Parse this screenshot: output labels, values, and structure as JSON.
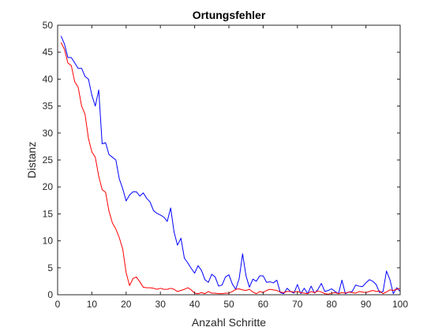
{
  "chart_data": {
    "type": "line",
    "title": "Ortungsfehler",
    "xlabel": "Anzahl Schritte",
    "ylabel": "Distanz",
    "xlim": [
      0,
      100
    ],
    "ylim": [
      0,
      50
    ],
    "xticks": [
      0,
      10,
      20,
      30,
      40,
      50,
      60,
      70,
      80,
      90,
      100
    ],
    "yticks": [
      0,
      5,
      10,
      15,
      20,
      25,
      30,
      35,
      40,
      45,
      50
    ],
    "grid": false,
    "series": [
      {
        "color": "#0000ff",
        "x": [
          1,
          2,
          3,
          4,
          5,
          6,
          7,
          8,
          9,
          10,
          11,
          12,
          13,
          14,
          15,
          16,
          17,
          18,
          19,
          20,
          21,
          22,
          23,
          24,
          25,
          26,
          27,
          28,
          29,
          30,
          31,
          32,
          33,
          34,
          35,
          36,
          37,
          38,
          39,
          40,
          41,
          42,
          43,
          44,
          45,
          46,
          47,
          48,
          49,
          50,
          51,
          52,
          53,
          54,
          55,
          56,
          57,
          58,
          59,
          60,
          61,
          62,
          63,
          64,
          65,
          66,
          67,
          68,
          69,
          70,
          71,
          72,
          73,
          74,
          75,
          76,
          77,
          78,
          79,
          80,
          81,
          82,
          83,
          84,
          85,
          86,
          87,
          88,
          89,
          90,
          91,
          92,
          93,
          94,
          95,
          96,
          97,
          98,
          99,
          100
        ],
        "y": [
          48,
          46.5,
          44,
          44,
          43,
          42,
          42,
          40.5,
          40,
          37,
          35,
          38,
          28,
          28.2,
          26,
          25.5,
          25,
          21.5,
          19.7,
          17.4,
          18.5,
          19.1,
          19.1,
          18.3,
          18.9,
          17.9,
          17.2,
          15.6,
          15.1,
          14.8,
          14.4,
          13.6,
          16.1,
          11.6,
          9.2,
          10.5,
          6.8,
          5.9,
          4.9,
          4.0,
          5.4,
          4.5,
          2.8,
          2.3,
          3.8,
          3.3,
          1.6,
          1.8,
          3.3,
          3.7,
          2.0,
          1.0,
          3.0,
          7.6,
          3.5,
          1.4,
          2.9,
          2.5,
          3.5,
          3.5,
          2.3,
          2.4,
          2.2,
          2.7,
          0.4,
          0.2,
          1.2,
          0.6,
          0.3,
          1.9,
          0.2,
          1.2,
          0.2,
          1.6,
          0.3,
          1.0,
          2.1,
          0.6,
          0.8,
          1.1,
          0.6,
          0.2,
          2.7,
          0.2,
          0.5,
          0.6,
          1.8,
          1.6,
          1.5,
          2.2,
          2.8,
          2.5,
          1.9,
          0.4,
          0.6,
          4.4,
          2.8,
          0.2,
          1.3,
          0.6
        ]
      },
      {
        "color": "#ff0000",
        "x": [
          1,
          2,
          3,
          4,
          5,
          6,
          7,
          8,
          9,
          10,
          11,
          12,
          13,
          14,
          15,
          16,
          17,
          18,
          19,
          20,
          21,
          22,
          23,
          24,
          25,
          26,
          27,
          28,
          29,
          30,
          31,
          32,
          33,
          34,
          35,
          36,
          37,
          38,
          39,
          40,
          41,
          42,
          43,
          44,
          45,
          46,
          47,
          48,
          49,
          50,
          51,
          52,
          53,
          54,
          55,
          56,
          57,
          58,
          59,
          60,
          61,
          62,
          63,
          64,
          65,
          66,
          67,
          68,
          69,
          70,
          71,
          72,
          73,
          74,
          75,
          76,
          77,
          78,
          79,
          80,
          81,
          82,
          83,
          84,
          85,
          86,
          87,
          88,
          89,
          90,
          91,
          92,
          93,
          94,
          95,
          96,
          97,
          98,
          99,
          100
        ],
        "y": [
          46.8,
          45.5,
          43,
          42.5,
          39.5,
          38.5,
          35,
          33.5,
          29,
          26.5,
          25.5,
          22,
          19.5,
          19,
          15.5,
          13.3,
          12.2,
          10.6,
          8.5,
          4.1,
          1.7,
          3.0,
          3.3,
          2.4,
          1.4,
          1.3,
          1.3,
          1.2,
          1.0,
          1.2,
          1.0,
          1.0,
          1.2,
          1.0,
          0.6,
          0.8,
          1.0,
          1.3,
          0.9,
          0.3,
          0.2,
          0.4,
          0.2,
          0.6,
          0.3,
          0.3,
          0.2,
          0.2,
          0.3,
          0.3,
          0.6,
          1.0,
          1.1,
          0.9,
          0.8,
          1.0,
          0.5,
          0.2,
          0.6,
          0.4,
          0.8,
          1.0,
          0.9,
          0.8,
          0.5,
          0.4,
          0.6,
          0.6,
          0.5,
          0.6,
          0.4,
          0.3,
          0.2,
          0.6,
          0.4,
          0.7,
          0.5,
          0.2,
          0.1,
          0.3,
          0.4,
          0.2,
          0.4,
          0.3,
          0.5,
          0.4,
          0.3,
          0.6,
          0.5,
          0.4,
          0.6,
          0.8,
          0.6,
          0.7,
          0.2,
          0.5,
          0.9,
          0.8,
          1.0,
          1.2
        ]
      }
    ]
  }
}
